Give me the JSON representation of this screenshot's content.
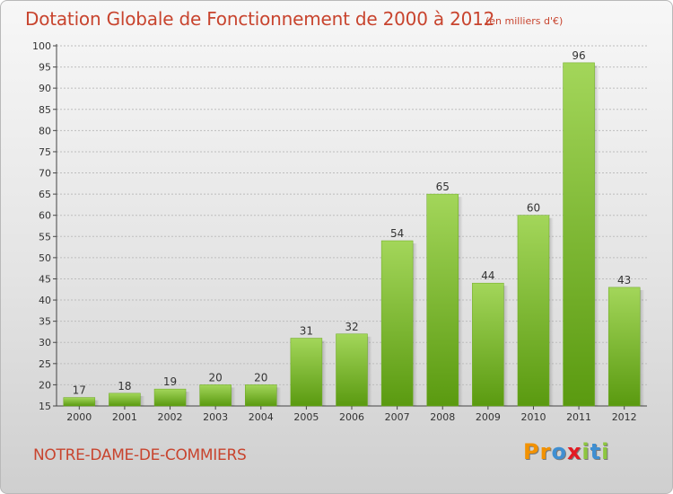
{
  "title": "Dotation Globale de Fonctionnement de 2000 à 2012",
  "subtitle": "(en milliers d'€)",
  "commune": "NOTRE-DAME-DE-COMMIERS",
  "logo": {
    "text": "Proxiti",
    "letters": [
      {
        "char": "P",
        "color": "#f39200"
      },
      {
        "char": "r",
        "color": "#f39200"
      },
      {
        "char": "o",
        "color": "#3f8fd2"
      },
      {
        "char": "x",
        "color": "#e31b23"
      },
      {
        "char": "i",
        "color": "#8dc63f"
      },
      {
        "char": "t",
        "color": "#3f8fd2"
      },
      {
        "char": "i",
        "color": "#8dc63f"
      }
    ]
  },
  "colors": {
    "title": "#c8442e",
    "bar_light": "#9dd24f",
    "bar_dark": "#5f9e12",
    "grid": "#bdbdbd"
  },
  "chart_data": {
    "type": "bar",
    "title": "Dotation Globale de Fonctionnement de 2000 à 2012",
    "subtitle": "(en milliers d'€)",
    "categories": [
      "2000",
      "2001",
      "2002",
      "2003",
      "2004",
      "2005",
      "2006",
      "2007",
      "2008",
      "2009",
      "2010",
      "2011",
      "2012"
    ],
    "values": [
      17,
      18,
      19,
      20,
      20,
      31,
      32,
      54,
      65,
      44,
      60,
      96,
      43
    ],
    "ylim": [
      15,
      100
    ],
    "yticks": [
      15,
      20,
      25,
      30,
      35,
      40,
      45,
      50,
      55,
      60,
      65,
      70,
      75,
      80,
      85,
      90,
      95,
      100
    ],
    "grid": true,
    "xlabel": "",
    "ylabel": ""
  }
}
